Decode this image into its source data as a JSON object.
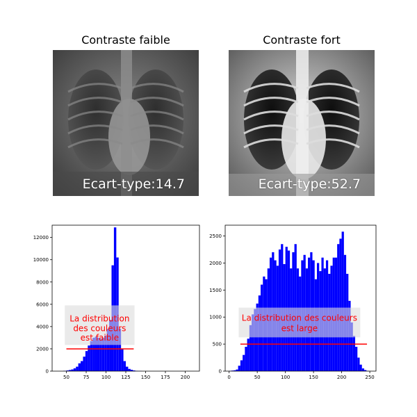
{
  "panels": [
    {
      "title": "Contraste faible",
      "stat": "Ecart-type:14.7"
    },
    {
      "title": "Contraste fort",
      "stat": "Ecart-type:52.7"
    }
  ],
  "chart_data": [
    {
      "type": "bar",
      "title": "",
      "xlabel": "",
      "ylabel": "",
      "xlim": [
        32,
        218
      ],
      "ylim": [
        0,
        13100
      ],
      "xticks": [
        50,
        75,
        100,
        125,
        150,
        175,
        200
      ],
      "yticks": [
        0,
        2000,
        4000,
        6000,
        8000,
        10000,
        12000
      ],
      "bar_color": "#0000ff",
      "bins": [
        [
          46,
          50,
          30
        ],
        [
          50,
          53,
          60
        ],
        [
          53,
          56,
          100
        ],
        [
          56,
          59,
          150
        ],
        [
          59,
          62,
          250
        ],
        [
          62,
          65,
          400
        ],
        [
          65,
          68,
          700
        ],
        [
          68,
          71,
          900
        ],
        [
          71,
          74,
          1300
        ],
        [
          74,
          77,
          1800
        ],
        [
          77,
          80,
          2300
        ],
        [
          80,
          83,
          2700
        ],
        [
          83,
          86,
          3000
        ],
        [
          86,
          89,
          3100
        ],
        [
          89,
          92,
          3000
        ],
        [
          92,
          95,
          2900
        ],
        [
          95,
          98,
          3000
        ],
        [
          98,
          101,
          3200
        ],
        [
          101,
          104,
          3800
        ],
        [
          104,
          107,
          4600
        ],
        [
          107,
          110,
          9500
        ],
        [
          110,
          113,
          12900
        ],
        [
          113,
          116,
          10200
        ],
        [
          116,
          119,
          3800
        ],
        [
          119,
          122,
          2000
        ],
        [
          122,
          125,
          900
        ],
        [
          125,
          128,
          400
        ],
        [
          128,
          131,
          200
        ],
        [
          131,
          134,
          120
        ],
        [
          134,
          137,
          60
        ],
        [
          137,
          140,
          30
        ],
        [
          140,
          145,
          15
        ]
      ],
      "annotation": {
        "lines": [
          "La distribution",
          "des couleurs",
          "est faible"
        ],
        "color": "#ff0000"
      },
      "spread_line": {
        "x": [
          50,
          135
        ],
        "y": 2000,
        "color": "#ff0000"
      }
    },
    {
      "type": "bar",
      "title": "",
      "xlabel": "",
      "ylabel": "",
      "xlim": [
        -7,
        261
      ],
      "ylim": [
        0,
        2700
      ],
      "xticks": [
        0,
        50,
        100,
        150,
        200,
        250
      ],
      "yticks": [
        0,
        500,
        1000,
        1500,
        2000,
        2500
      ],
      "bar_color": "#0000ff",
      "bins": [
        [
          0,
          4,
          5
        ],
        [
          4,
          8,
          10
        ],
        [
          8,
          12,
          15
        ],
        [
          12,
          16,
          30
        ],
        [
          16,
          20,
          100
        ],
        [
          20,
          24,
          200
        ],
        [
          24,
          28,
          300
        ],
        [
          28,
          32,
          450
        ],
        [
          32,
          36,
          600
        ],
        [
          36,
          40,
          850
        ],
        [
          40,
          44,
          1050
        ],
        [
          44,
          48,
          1150
        ],
        [
          48,
          52,
          1250
        ],
        [
          52,
          56,
          1400
        ],
        [
          56,
          60,
          1600
        ],
        [
          60,
          64,
          1750
        ],
        [
          64,
          68,
          1700
        ],
        [
          68,
          72,
          1900
        ],
        [
          72,
          76,
          2100
        ],
        [
          76,
          80,
          2200
        ],
        [
          80,
          84,
          2050
        ],
        [
          84,
          88,
          1950
        ],
        [
          88,
          92,
          2250
        ],
        [
          92,
          96,
          2350
        ],
        [
          96,
          100,
          1980
        ],
        [
          100,
          104,
          2300
        ],
        [
          104,
          108,
          2230
        ],
        [
          108,
          112,
          1900
        ],
        [
          112,
          116,
          2200
        ],
        [
          116,
          120,
          2350
        ],
        [
          120,
          124,
          1900
        ],
        [
          124,
          128,
          1750
        ],
        [
          128,
          132,
          2050
        ],
        [
          132,
          136,
          2150
        ],
        [
          136,
          140,
          1900
        ],
        [
          140,
          144,
          2100
        ],
        [
          144,
          148,
          2200
        ],
        [
          148,
          152,
          2050
        ],
        [
          152,
          156,
          1700
        ],
        [
          156,
          160,
          2000
        ],
        [
          160,
          164,
          1850
        ],
        [
          164,
          168,
          2100
        ],
        [
          168,
          172,
          1900
        ],
        [
          172,
          176,
          2050
        ],
        [
          176,
          180,
          1800
        ],
        [
          180,
          184,
          1950
        ],
        [
          184,
          188,
          2100
        ],
        [
          188,
          192,
          2100
        ],
        [
          192,
          196,
          2350
        ],
        [
          196,
          200,
          2450
        ],
        [
          200,
          204,
          2580
        ],
        [
          204,
          208,
          2150
        ],
        [
          208,
          212,
          1800
        ],
        [
          212,
          216,
          1300
        ],
        [
          216,
          220,
          900
        ],
        [
          220,
          224,
          650
        ],
        [
          224,
          228,
          450
        ],
        [
          228,
          232,
          250
        ],
        [
          232,
          236,
          120
        ],
        [
          236,
          240,
          50
        ],
        [
          240,
          244,
          20
        ],
        [
          244,
          248,
          5
        ]
      ],
      "annotation": {
        "lines": [
          "La distribution des couleurs",
          "est large"
        ],
        "color": "#ff0000"
      },
      "spread_line": {
        "x": [
          20,
          245
        ],
        "y": 500,
        "color": "#ff0000"
      }
    }
  ]
}
